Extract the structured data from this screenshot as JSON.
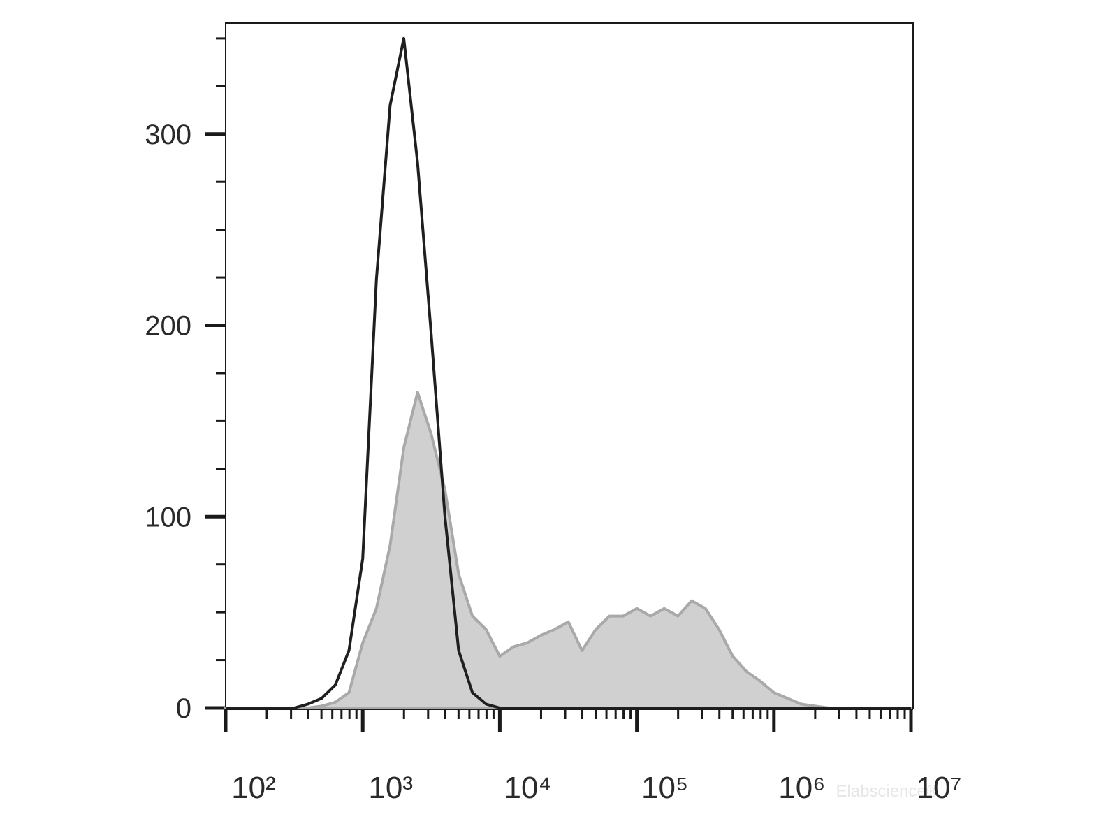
{
  "chart_data": {
    "type": "line",
    "x": [
      100,
      126,
      158,
      200,
      251,
      316,
      398,
      501,
      631,
      794,
      1000,
      1259,
      1585,
      1995,
      2512,
      3162,
      3981,
      5012,
      6310,
      7943,
      10000,
      12589,
      15849,
      19953,
      25119,
      31623,
      39811,
      50119,
      63096,
      79433,
      100000,
      125893,
      158489,
      199526,
      251189,
      316228,
      398107,
      501187,
      630957,
      794328,
      1000000,
      1258925,
      1584893,
      1995262,
      2511886,
      3162278,
      3981072,
      5011872,
      6309573,
      7943282,
      10000000
    ],
    "series": [
      {
        "color": "#d0d0d0",
        "stroke": "#a9a9ab",
        "fill": true,
        "values": [
          0,
          0,
          0,
          0,
          0,
          0,
          0,
          1,
          3,
          8,
          34,
          52,
          85,
          136,
          165,
          143,
          114,
          70,
          48,
          41,
          27,
          32,
          34,
          38,
          41,
          45,
          30,
          41,
          48,
          48,
          52,
          48,
          52,
          48,
          56,
          52,
          41,
          27,
          19,
          14,
          8,
          5,
          2,
          1,
          0,
          0,
          0,
          0,
          0,
          0,
          0
        ]
      },
      {
        "color": "#1f1f1f",
        "fill": false,
        "values": [
          0,
          0,
          0,
          0,
          0,
          0,
          2,
          5,
          12,
          30,
          78,
          224,
          315,
          350,
          285,
          195,
          100,
          30,
          8,
          2,
          0,
          0,
          0,
          0,
          0,
          0,
          0,
          0,
          0,
          0,
          0,
          0,
          0,
          0,
          0,
          0,
          0,
          0,
          0,
          0,
          0,
          0,
          0,
          0,
          0,
          0,
          0,
          0,
          0,
          0,
          0
        ]
      }
    ],
    "xlim": [
      100,
      10000000
    ],
    "xscale": "log",
    "xticks": [
      {
        "value": 100,
        "label": "10²"
      },
      {
        "value": 1000,
        "label": "10³"
      },
      {
        "value": 10000,
        "label": "10⁴"
      },
      {
        "value": 100000,
        "label": "10⁵"
      },
      {
        "value": 1000000,
        "label": "10⁶"
      },
      {
        "value": 10000000,
        "label": "10⁷"
      }
    ],
    "ylim": [
      0,
      358
    ],
    "yticks": [
      0,
      100,
      200,
      300
    ],
    "yticks_minor": [
      25,
      50,
      75,
      125,
      150,
      175,
      225,
      250,
      275,
      325,
      350
    ],
    "minor_log_ticks": true,
    "watermark": "Elabscience®"
  }
}
